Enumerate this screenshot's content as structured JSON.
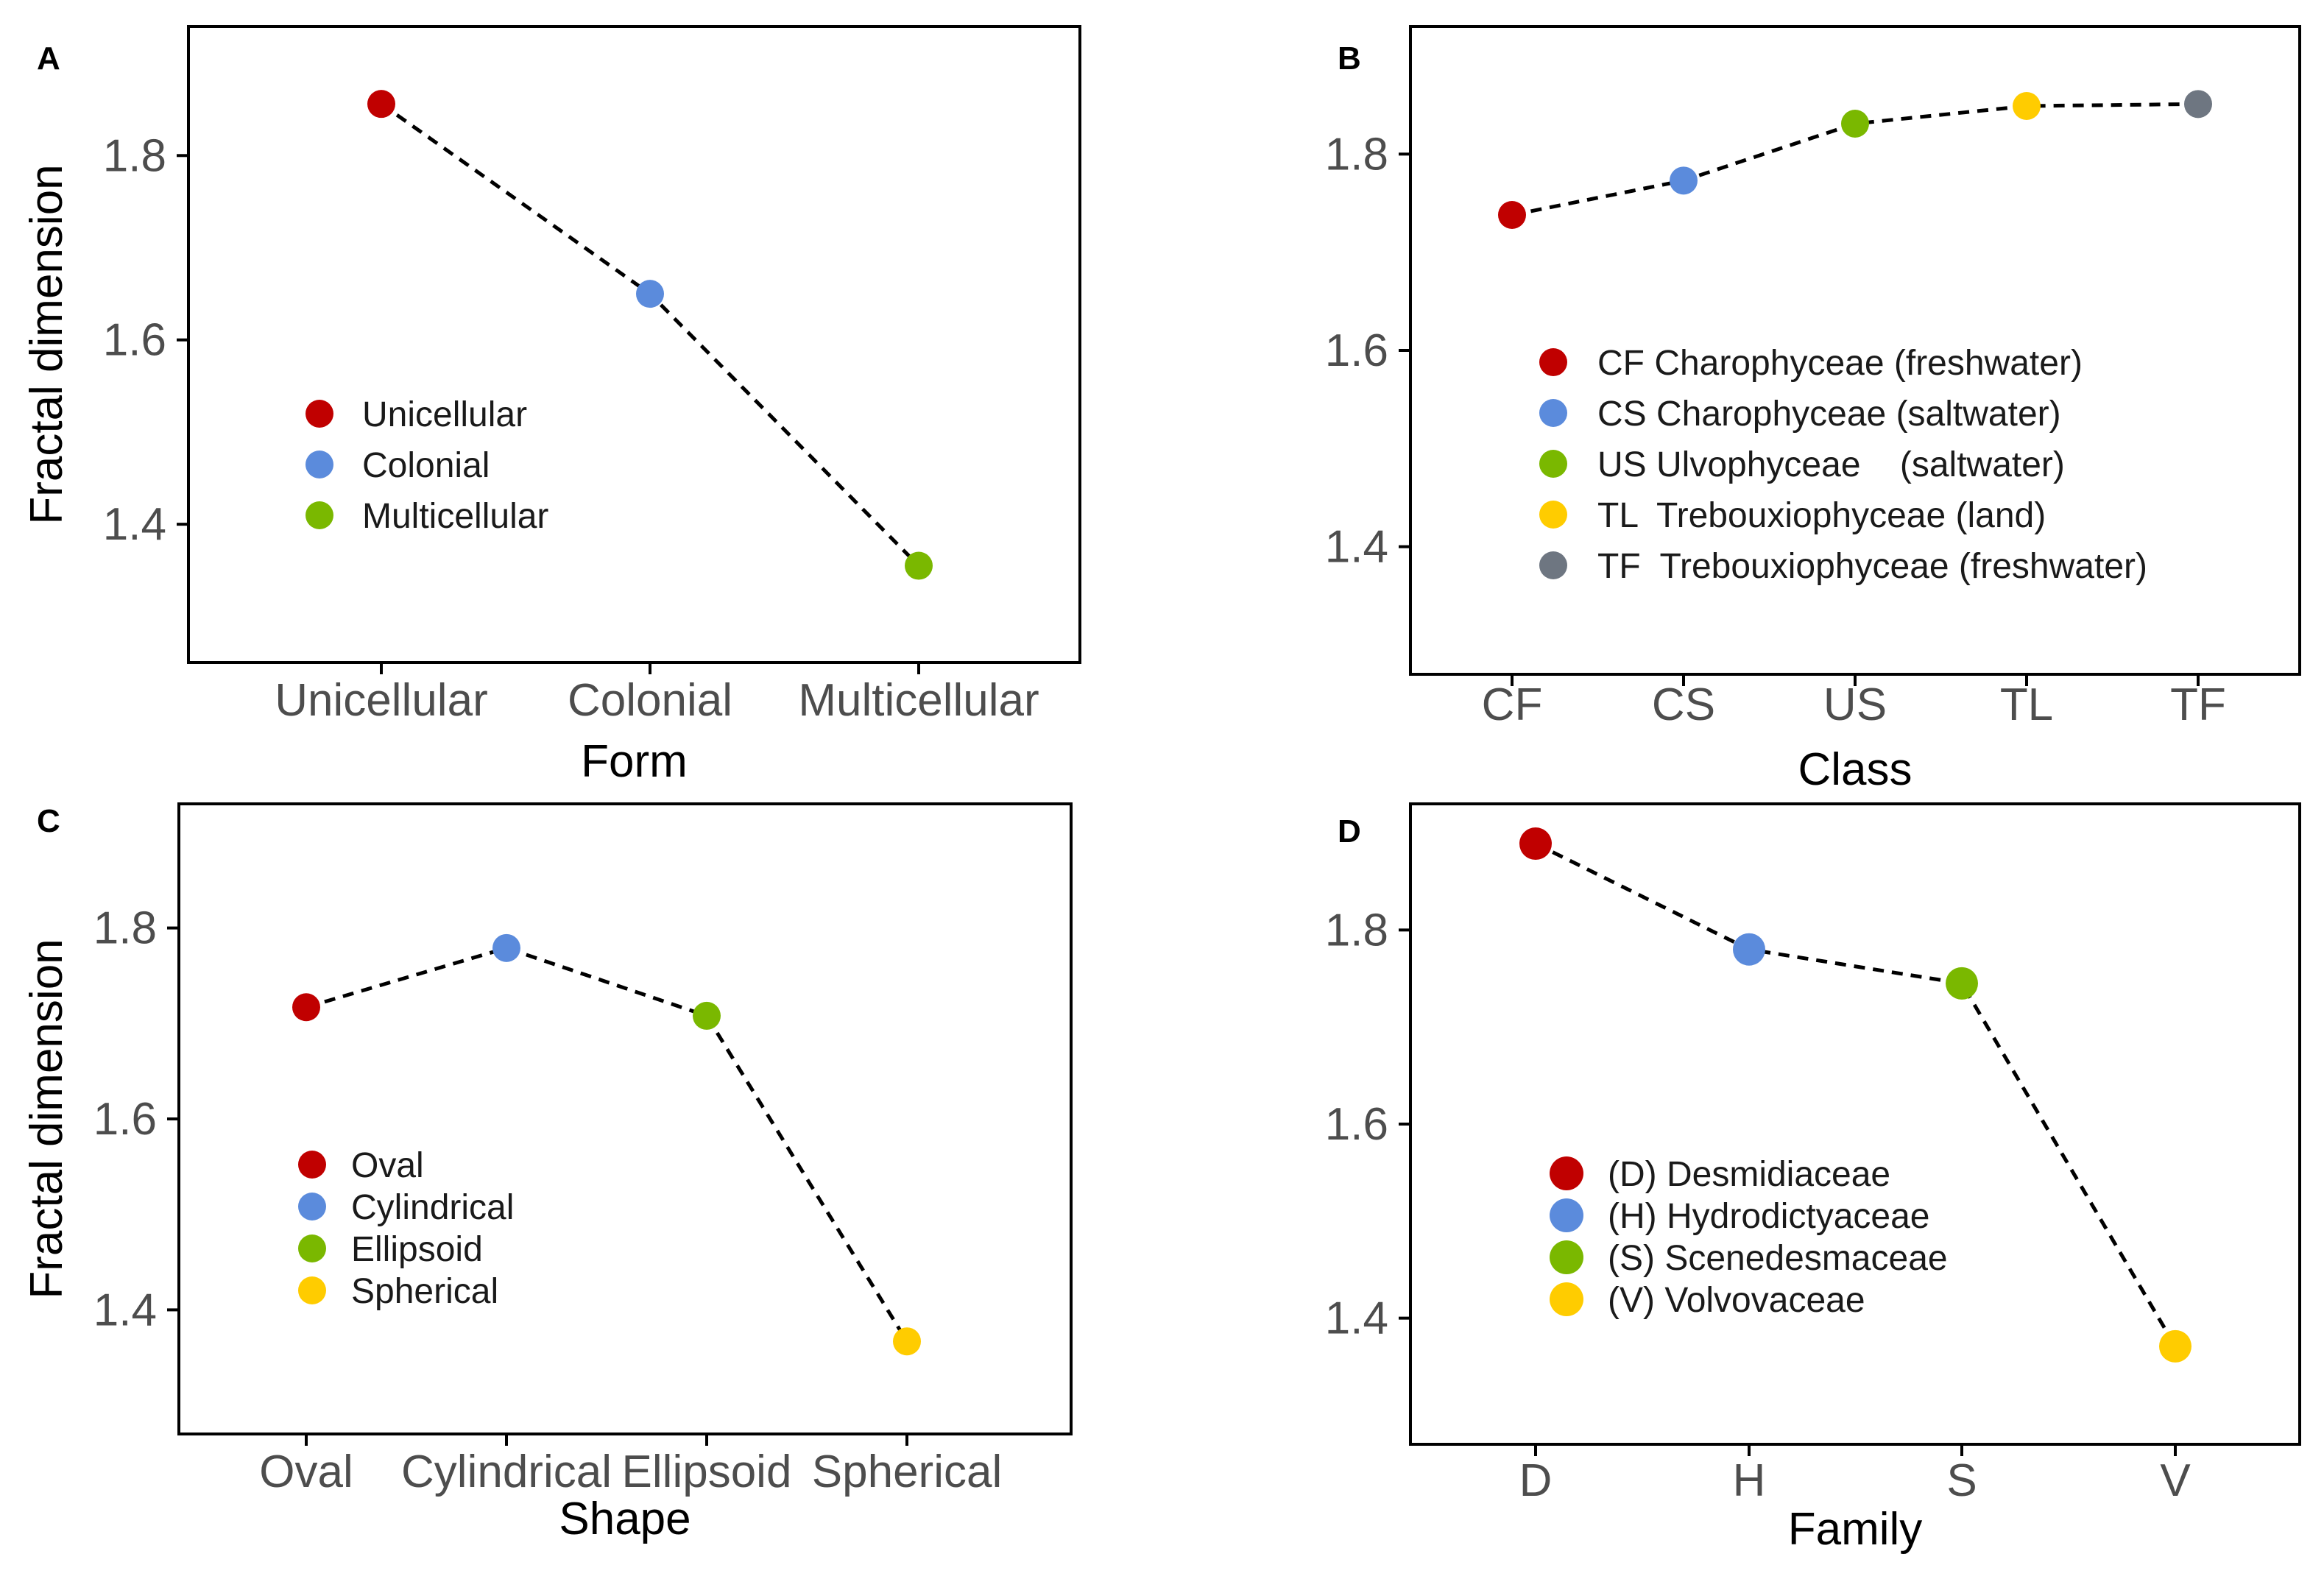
{
  "chart_data": [
    {
      "panel_label": "A",
      "type": "line",
      "ylabel": "Fractal dimension",
      "xlabel": "Form",
      "ylim": [
        1.25,
        1.94
      ],
      "yticks": [
        "1.4",
        "1.6",
        "1.8"
      ],
      "grid": false,
      "legend_position": "center-left",
      "categories": [
        "Unicellular",
        "Colonial",
        "Multicellular"
      ],
      "values": [
        1.856,
        1.65,
        1.355
      ],
      "point_colors": [
        "#c00000",
        "#5b8bdc",
        "#7ab800"
      ],
      "legend": [
        {
          "label": "Unicellular",
          "color": "#c00000"
        },
        {
          "label": "Colonial",
          "color": "#5b8bdc"
        },
        {
          "label": "Multicellular",
          "color": "#7ab800"
        }
      ]
    },
    {
      "panel_label": "B",
      "type": "line",
      "ylabel": "",
      "xlabel": "Class",
      "ylim": [
        1.27,
        1.93
      ],
      "yticks": [
        "1.4",
        "1.6",
        "1.8"
      ],
      "grid": false,
      "legend_position": "center",
      "categories": [
        "CF",
        "CS",
        "US",
        "TL",
        "TF"
      ],
      "values": [
        1.738,
        1.773,
        1.831,
        1.849,
        1.851
      ],
      "point_colors": [
        "#c00000",
        "#5b8bdc",
        "#7ab800",
        "#ffcc00",
        "#6e7681"
      ],
      "legend": [
        {
          "label": "CF Charophyceae (freshwater)",
          "color": "#c00000"
        },
        {
          "label": "CS Charophyceae (saltwater)",
          "color": "#5b8bdc"
        },
        {
          "label": "US Ulvophyceae    (saltwater)",
          "color": "#7ab800"
        },
        {
          "label": "TL  Trebouxiophyceae (land)",
          "color": "#ffcc00"
        },
        {
          "label": "TF  Trebouxiophyceae (freshwater)",
          "color": "#6e7681"
        }
      ]
    },
    {
      "panel_label": "C",
      "type": "line",
      "ylabel": "Fractal dimension",
      "xlabel": "Shape",
      "ylim": [
        1.27,
        1.93
      ],
      "yticks": [
        "1.4",
        "1.6",
        "1.8"
      ],
      "grid": false,
      "legend_position": "center-left",
      "categories": [
        "Oval",
        "Cylindrical",
        "Ellipsoid",
        "Spherical"
      ],
      "values": [
        1.717,
        1.779,
        1.708,
        1.367
      ],
      "point_colors": [
        "#c00000",
        "#5b8bdc",
        "#7ab800",
        "#ffcc00"
      ],
      "legend": [
        {
          "label": "Oval",
          "color": "#c00000"
        },
        {
          "label": "Cylindrical",
          "color": "#5b8bdc"
        },
        {
          "label": "Ellipsoid",
          "color": "#7ab800"
        },
        {
          "label": "Spherical",
          "color": "#ffcc00"
        }
      ]
    },
    {
      "panel_label": "D",
      "type": "line",
      "ylabel": "",
      "xlabel": "Family",
      "ylim": [
        1.27,
        1.93
      ],
      "yticks": [
        "1.4",
        "1.6",
        "1.8"
      ],
      "grid": false,
      "legend_position": "center-left",
      "categories": [
        "D",
        "H",
        "S",
        "V"
      ],
      "values": [
        1.889,
        1.78,
        1.745,
        1.371
      ],
      "point_colors": [
        "#c00000",
        "#5b8bdc",
        "#7ab800",
        "#ffcc00"
      ],
      "legend": [
        {
          "label": "(D) Desmidiaceae",
          "color": "#c00000"
        },
        {
          "label": "(H) Hydrodictyaceae",
          "color": "#5b8bdc"
        },
        {
          "label": "(S) Scenedesmaceae",
          "color": "#7ab800"
        },
        {
          "label": "(V) Volvovaceae",
          "color": "#ffcc00"
        }
      ]
    }
  ]
}
